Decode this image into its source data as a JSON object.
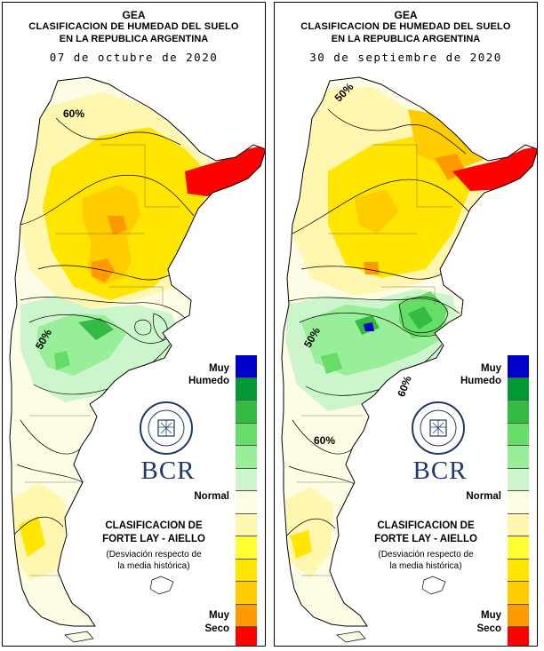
{
  "panels": [
    {
      "title1": "GEA",
      "title2": "CLASIFICACION DE HUMEDAD DEL SUELO",
      "title3": "EN LA REPUBLICA ARGENTINA",
      "date": "07 de octubre de 2020",
      "contour_labels": [
        "60%",
        "50%"
      ]
    },
    {
      "title1": "GEA",
      "title2": "CLASIFICACION DE HUMEDAD DEL SUELO",
      "title3": "EN LA REPUBLICA ARGENTINA",
      "date": "30 de septiembre de 2020",
      "contour_labels": [
        "50%",
        "50%",
        "60%",
        "60%"
      ]
    }
  ],
  "legend": {
    "muy_humedo_1": "Muy",
    "muy_humedo_2": "Humedo",
    "normal": "Normal",
    "muy_seco_1": "Muy",
    "muy_seco_2": "Seco",
    "classes": [
      "muy-humedo-5",
      "humedo-4",
      "humedo-3",
      "humedo-2",
      "humedo-1",
      "normal-high",
      "normal",
      "normal-low",
      "seco-1",
      "seco-2",
      "seco-3",
      "seco-4",
      "muy-seco-5"
    ],
    "colors": [
      "#0000cc",
      "#009933",
      "#33bb44",
      "#66dd66",
      "#99ee99",
      "#ccf5cc",
      "#fdfde6",
      "#fff7b0",
      "#ffff33",
      "#ffe500",
      "#ffcc00",
      "#ff9900",
      "#ff0000"
    ]
  },
  "classification": {
    "line1": "CLASIFICACION DE",
    "line2": "FORTE LAY - AIELLO",
    "line3": "(Desviación respecto de",
    "line4": "la media histórica)"
  },
  "brand": {
    "logo_text": "BCR",
    "color": "#1f3a68"
  }
}
